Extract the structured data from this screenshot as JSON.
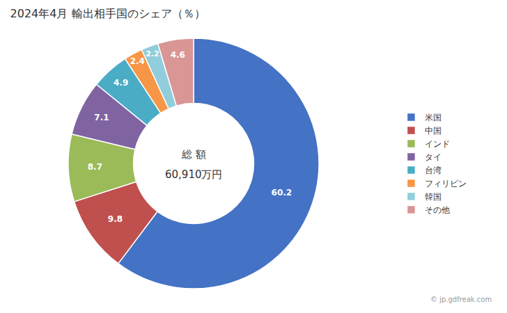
{
  "chart_data": {
    "type": "pie",
    "title": "2024年4月 輸出相手国のシェア（％）",
    "categories": [
      "米国",
      "中国",
      "インド",
      "タイ",
      "台湾",
      "フィリピン",
      "韓国",
      "その他"
    ],
    "values": [
      60.2,
      9.8,
      8.7,
      7.1,
      4.9,
      2.4,
      2.2,
      4.6
    ],
    "colors": [
      "#4472C4",
      "#C0504D",
      "#9BBB59",
      "#8064A2",
      "#4BACC6",
      "#F79646",
      "#92CDDC",
      "#D99694"
    ],
    "annotations": [
      "総 額",
      "60,910万円",
      "© jp.gdfreak.com"
    ],
    "data_labels": true,
    "legend": "right"
  }
}
